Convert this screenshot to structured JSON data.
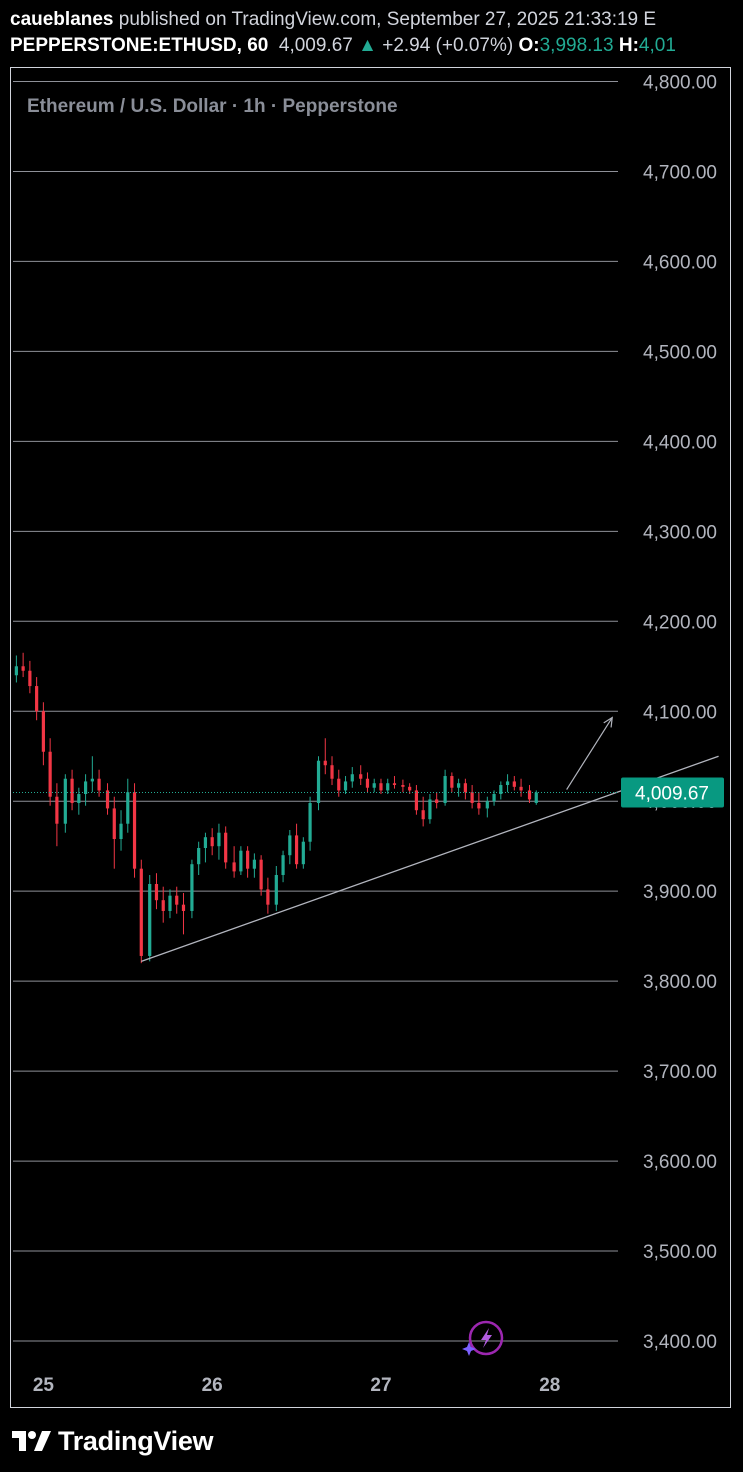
{
  "header": {
    "author": "caueblanes",
    "published_text": "published on TradingView.com, September 27, 2025 21:33:19 E",
    "symbol": "PEPPERSTONE:ETHUSD, 60",
    "last_price": "4,009.67",
    "change_arrow": "▲",
    "change": "+2.94 (+0.07%)",
    "open_label": "O:",
    "open_value": "3,998.13",
    "high_label": "H:",
    "high_value": "4,01"
  },
  "chart_data": {
    "type": "candlestick",
    "legend_title": "Ethereum / U.S. Dollar · 1h · Pepperstone",
    "y_ticks": [
      "4,800.00",
      "4,700.00",
      "4,600.00",
      "4,500.00",
      "4,400.00",
      "4,300.00",
      "4,200.00",
      "4,100.00",
      "4,000.00",
      "3,900.00",
      "3,800.00",
      "3,700.00",
      "3,600.00",
      "3,500.00",
      "3,400.00"
    ],
    "y_tick_values": [
      4800,
      4700,
      4600,
      4500,
      4400,
      4300,
      4200,
      4100,
      4000,
      3900,
      3800,
      3700,
      3600,
      3500,
      3400
    ],
    "ylim": [
      3370,
      4815
    ],
    "x_ticks": [
      "25",
      "26",
      "27",
      "28"
    ],
    "x_tick_values": [
      25,
      26,
      27,
      28
    ],
    "x_range": [
      24.82,
      29.05
    ],
    "current_price": 4009.67,
    "current_price_label": "4,009.67",
    "grid": "horizontal",
    "colors": {
      "up": "#22ab94",
      "down": "#f23645",
      "grid": "#b2b5be",
      "label_bg": "#089981",
      "text": "#b2b5be"
    },
    "candles": [
      {
        "t": 24.84,
        "o": 4140,
        "h": 4162,
        "l": 4132,
        "c": 4150
      },
      {
        "t": 24.88,
        "o": 4150,
        "h": 4165,
        "l": 4138,
        "c": 4145
      },
      {
        "t": 24.92,
        "o": 4145,
        "h": 4156,
        "l": 4120,
        "c": 4128
      },
      {
        "t": 24.96,
        "o": 4128,
        "h": 4138,
        "l": 4090,
        "c": 4100
      },
      {
        "t": 25.0,
        "o": 4100,
        "h": 4110,
        "l": 4040,
        "c": 4055
      },
      {
        "t": 25.04,
        "o": 4055,
        "h": 4070,
        "l": 3995,
        "c": 4005
      },
      {
        "t": 25.08,
        "o": 4005,
        "h": 4020,
        "l": 3950,
        "c": 3975
      },
      {
        "t": 25.13,
        "o": 3975,
        "h": 4030,
        "l": 3965,
        "c": 4025
      },
      {
        "t": 25.17,
        "o": 4025,
        "h": 4035,
        "l": 3990,
        "c": 3998
      },
      {
        "t": 25.21,
        "o": 3998,
        "h": 4015,
        "l": 3985,
        "c": 4008
      },
      {
        "t": 25.25,
        "o": 4008,
        "h": 4030,
        "l": 3995,
        "c": 4022
      },
      {
        "t": 25.29,
        "o": 4022,
        "h": 4050,
        "l": 4010,
        "c": 4025
      },
      {
        "t": 25.33,
        "o": 4025,
        "h": 4035,
        "l": 4005,
        "c": 4012
      },
      {
        "t": 25.38,
        "o": 4012,
        "h": 4020,
        "l": 3985,
        "c": 3992
      },
      {
        "t": 25.42,
        "o": 3992,
        "h": 4005,
        "l": 3925,
        "c": 3958
      },
      {
        "t": 25.46,
        "o": 3958,
        "h": 3990,
        "l": 3945,
        "c": 3975
      },
      {
        "t": 25.5,
        "o": 3975,
        "h": 4025,
        "l": 3965,
        "c": 4010
      },
      {
        "t": 25.54,
        "o": 4010,
        "h": 4020,
        "l": 3915,
        "c": 3925
      },
      {
        "t": 25.58,
        "o": 3925,
        "h": 3935,
        "l": 3820,
        "c": 3828
      },
      {
        "t": 25.63,
        "o": 3828,
        "h": 3918,
        "l": 3822,
        "c": 3908
      },
      {
        "t": 25.67,
        "o": 3908,
        "h": 3920,
        "l": 3880,
        "c": 3890
      },
      {
        "t": 25.71,
        "o": 3890,
        "h": 3905,
        "l": 3865,
        "c": 3878
      },
      {
        "t": 25.75,
        "o": 3878,
        "h": 3902,
        "l": 3870,
        "c": 3895
      },
      {
        "t": 25.79,
        "o": 3895,
        "h": 3905,
        "l": 3875,
        "c": 3885
      },
      {
        "t": 25.83,
        "o": 3885,
        "h": 3898,
        "l": 3852,
        "c": 3878
      },
      {
        "t": 25.88,
        "o": 3878,
        "h": 3935,
        "l": 3870,
        "c": 3930
      },
      {
        "t": 25.92,
        "o": 3930,
        "h": 3955,
        "l": 3918,
        "c": 3948
      },
      {
        "t": 25.96,
        "o": 3948,
        "h": 3965,
        "l": 3932,
        "c": 3960
      },
      {
        "t": 26.0,
        "o": 3960,
        "h": 3970,
        "l": 3940,
        "c": 3950
      },
      {
        "t": 26.04,
        "o": 3950,
        "h": 3975,
        "l": 3935,
        "c": 3965
      },
      {
        "t": 26.08,
        "o": 3965,
        "h": 3972,
        "l": 3925,
        "c": 3932
      },
      {
        "t": 26.13,
        "o": 3932,
        "h": 3950,
        "l": 3915,
        "c": 3922
      },
      {
        "t": 26.17,
        "o": 3922,
        "h": 3950,
        "l": 3918,
        "c": 3945
      },
      {
        "t": 26.21,
        "o": 3945,
        "h": 3950,
        "l": 3915,
        "c": 3925
      },
      {
        "t": 26.25,
        "o": 3925,
        "h": 3942,
        "l": 3915,
        "c": 3935
      },
      {
        "t": 26.29,
        "o": 3935,
        "h": 3940,
        "l": 3895,
        "c": 3902
      },
      {
        "t": 26.33,
        "o": 3902,
        "h": 3915,
        "l": 3875,
        "c": 3885
      },
      {
        "t": 26.38,
        "o": 3885,
        "h": 3928,
        "l": 3878,
        "c": 3918
      },
      {
        "t": 26.42,
        "o": 3918,
        "h": 3945,
        "l": 3910,
        "c": 3940
      },
      {
        "t": 26.46,
        "o": 3940,
        "h": 3968,
        "l": 3930,
        "c": 3962
      },
      {
        "t": 26.5,
        "o": 3962,
        "h": 3975,
        "l": 3925,
        "c": 3930
      },
      {
        "t": 26.54,
        "o": 3930,
        "h": 3960,
        "l": 3925,
        "c": 3955
      },
      {
        "t": 26.58,
        "o": 3955,
        "h": 4005,
        "l": 3945,
        "c": 3998
      },
      {
        "t": 26.63,
        "o": 3998,
        "h": 4050,
        "l": 3990,
        "c": 4045
      },
      {
        "t": 26.67,
        "o": 4045,
        "h": 4070,
        "l": 4030,
        "c": 4040
      },
      {
        "t": 26.71,
        "o": 4040,
        "h": 4050,
        "l": 4018,
        "c": 4025
      },
      {
        "t": 26.75,
        "o": 4025,
        "h": 4035,
        "l": 4005,
        "c": 4012
      },
      {
        "t": 26.79,
        "o": 4012,
        "h": 4028,
        "l": 4008,
        "c": 4022
      },
      {
        "t": 26.83,
        "o": 4022,
        "h": 4038,
        "l": 4015,
        "c": 4030
      },
      {
        "t": 26.88,
        "o": 4030,
        "h": 4040,
        "l": 4018,
        "c": 4025
      },
      {
        "t": 26.92,
        "o": 4025,
        "h": 4032,
        "l": 4010,
        "c": 4015
      },
      {
        "t": 26.96,
        "o": 4015,
        "h": 4025,
        "l": 4010,
        "c": 4020
      },
      {
        "t": 27.0,
        "o": 4020,
        "h": 4025,
        "l": 4008,
        "c": 4012
      },
      {
        "t": 27.04,
        "o": 4012,
        "h": 4025,
        "l": 4008,
        "c": 4020
      },
      {
        "t": 27.08,
        "o": 4020,
        "h": 4028,
        "l": 4014,
        "c": 4018
      },
      {
        "t": 27.13,
        "o": 4018,
        "h": 4024,
        "l": 4010,
        "c": 4016
      },
      {
        "t": 27.17,
        "o": 4016,
        "h": 4020,
        "l": 4008,
        "c": 4012
      },
      {
        "t": 27.21,
        "o": 4012,
        "h": 4018,
        "l": 3985,
        "c": 3990
      },
      {
        "t": 27.25,
        "o": 3990,
        "h": 4005,
        "l": 3972,
        "c": 3980
      },
      {
        "t": 27.29,
        "o": 3980,
        "h": 4008,
        "l": 3975,
        "c": 4002
      },
      {
        "t": 27.33,
        "o": 4002,
        "h": 4010,
        "l": 3992,
        "c": 3998
      },
      {
        "t": 27.38,
        "o": 3998,
        "h": 4035,
        "l": 3995,
        "c": 4028
      },
      {
        "t": 27.42,
        "o": 4028,
        "h": 4032,
        "l": 4010,
        "c": 4015
      },
      {
        "t": 27.46,
        "o": 4015,
        "h": 4025,
        "l": 4005,
        "c": 4020
      },
      {
        "t": 27.5,
        "o": 4020,
        "h": 4025,
        "l": 4002,
        "c": 4010
      },
      {
        "t": 27.54,
        "o": 4010,
        "h": 4018,
        "l": 3992,
        "c": 3998
      },
      {
        "t": 27.58,
        "o": 3998,
        "h": 4010,
        "l": 3985,
        "c": 3992
      },
      {
        "t": 27.63,
        "o": 3992,
        "h": 4005,
        "l": 3982,
        "c": 4000
      },
      {
        "t": 27.67,
        "o": 4000,
        "h": 4012,
        "l": 3995,
        "c": 4008
      },
      {
        "t": 27.71,
        "o": 4008,
        "h": 4022,
        "l": 4002,
        "c": 4018
      },
      {
        "t": 27.75,
        "o": 4018,
        "h": 4030,
        "l": 4010,
        "c": 4022
      },
      {
        "t": 27.79,
        "o": 4022,
        "h": 4028,
        "l": 4012,
        "c": 4016
      },
      {
        "t": 27.83,
        "o": 4016,
        "h": 4025,
        "l": 4005,
        "c": 4012
      },
      {
        "t": 27.88,
        "o": 4012,
        "h": 4018,
        "l": 3998,
        "c": 4002
      },
      {
        "t": 27.92,
        "o": 3998,
        "h": 4012,
        "l": 3996,
        "c": 4009.67
      }
    ],
    "drawings": {
      "trendline": {
        "t1": 25.58,
        "p1": 3822,
        "t2": 29.0,
        "p2": 4050
      },
      "arrow": {
        "t1": 28.1,
        "p1": 4013,
        "t2": 28.37,
        "p2": 4093
      }
    }
  },
  "footer": {
    "brand": "TradingView"
  }
}
